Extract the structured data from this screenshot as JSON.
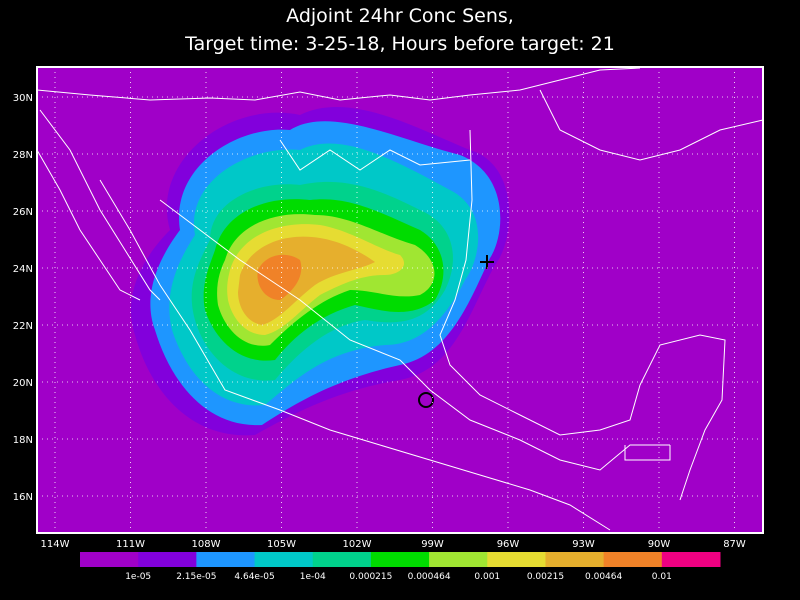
{
  "header": {
    "title": [
      "Adjoint 24hr Conc Sens,",
      "Target time: 3-25-18, Hours before target: 21"
    ]
  },
  "map": {
    "lat_labels": [
      "30N",
      "28N",
      "26N",
      "24N",
      "22N",
      "20N",
      "18N",
      "16N"
    ],
    "lon_labels": [
      "114W",
      "111W",
      "108W",
      "105W",
      "102W",
      "99W",
      "96W",
      "93W",
      "90W",
      "87W"
    ]
  },
  "colorbar": {
    "colors": [
      "#a000c8",
      "#8200dc",
      "#1e96ff",
      "#00c8c8",
      "#00d28c",
      "#00dc00",
      "#a0e632",
      "#e6dc32",
      "#e6af2d",
      "#f08228",
      "#f00082"
    ],
    "labels": [
      "1e-05",
      "2.15e-05",
      "4.64e-05",
      "1e-04",
      "0.000215",
      "0.000464",
      "0.001",
      "0.00215",
      "0.00464",
      "0.01"
    ]
  }
}
